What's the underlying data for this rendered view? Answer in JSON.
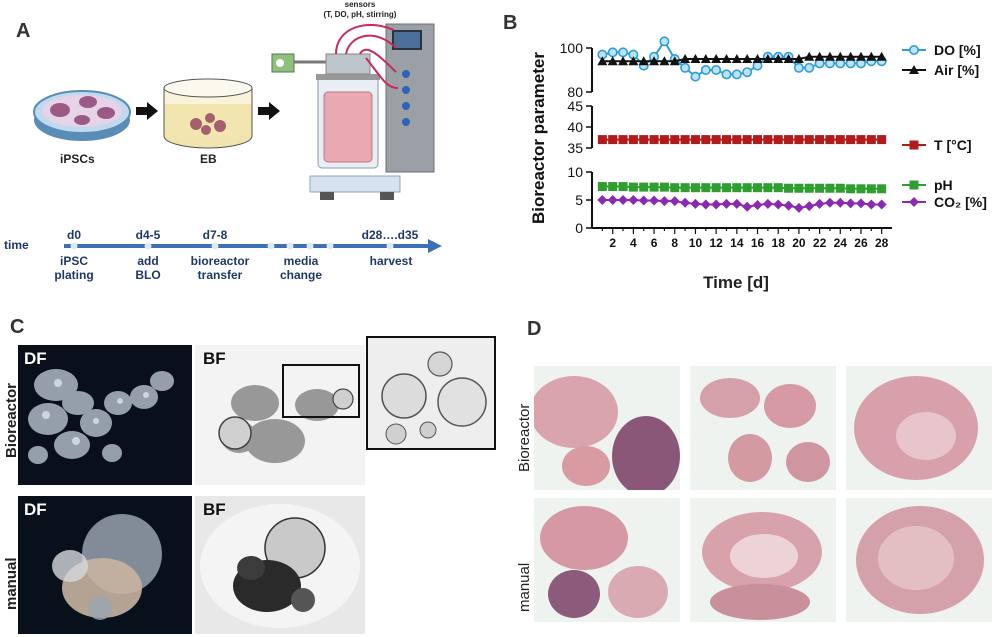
{
  "panels": {
    "a": "A",
    "b": "B",
    "c": "C",
    "d": "D"
  },
  "panel_a": {
    "sensors_label": "sensors",
    "sensors_detail": "(T, DO, pH, stirring)",
    "ipsc_label": "iPSCs",
    "eb_label": "EB",
    "timeline": {
      "time_label": "time",
      "days": [
        "d0",
        "d4-5",
        "d7-8",
        "d28….d35"
      ],
      "events": [
        {
          "line1": "iPSC",
          "line2": "plating"
        },
        {
          "line1": "add",
          "line2": "BLO"
        },
        {
          "line1": "bioreactor",
          "line2": "transfer"
        },
        {
          "line1": "media",
          "line2": "change"
        },
        {
          "line1": "",
          "line2": "harvest"
        }
      ]
    }
  },
  "panel_c": {
    "row_labels": [
      "Bioreactor",
      "manual"
    ],
    "df_label": "DF",
    "bf_label": "BF"
  },
  "panel_d": {
    "row_labels": [
      "Bioreactor",
      "manual"
    ]
  },
  "chart_data": {
    "type": "line",
    "ylabel": "Bioreactor parameter",
    "xlabel": "Time [d]",
    "x_ticks": [
      2,
      4,
      6,
      8,
      10,
      12,
      14,
      16,
      18,
      20,
      22,
      24,
      26,
      28
    ],
    "x": [
      1,
      2,
      3,
      4,
      5,
      6,
      7,
      8,
      9,
      10,
      11,
      12,
      13,
      14,
      15,
      16,
      17,
      18,
      19,
      20,
      21,
      22,
      23,
      24,
      25,
      26,
      27,
      28
    ],
    "xlim": [
      0,
      29
    ],
    "segments": [
      {
        "ylim": [
          80,
          100
        ],
        "ticks": [
          80,
          100
        ]
      },
      {
        "ylim": [
          35,
          45
        ],
        "ticks": [
          35,
          40,
          45
        ]
      },
      {
        "ylim": [
          0,
          10
        ],
        "ticks": [
          0,
          5,
          10
        ]
      }
    ],
    "series": [
      {
        "name": "DO [%]",
        "segment": 0,
        "color": "#2e9fd6",
        "marker": "circle",
        "values": [
          97,
          98,
          98,
          97,
          92,
          96,
          103,
          95,
          91,
          87,
          90,
          90,
          88,
          88,
          89,
          92,
          96,
          96,
          96,
          91,
          91,
          93,
          93,
          93,
          93,
          93,
          94,
          94
        ]
      },
      {
        "name": "Air [%]",
        "segment": 0,
        "color": "#111111",
        "marker": "triangle",
        "values": [
          94,
          94,
          94,
          94,
          94,
          94,
          94,
          94,
          95,
          95,
          95,
          95,
          95,
          95,
          95,
          95,
          95,
          95,
          95,
          95,
          96,
          96,
          96,
          96,
          96,
          96,
          96,
          96
        ]
      },
      {
        "name": "T [°C]",
        "segment": 1,
        "color": "#b01c1c",
        "marker": "square",
        "values": [
          37,
          37,
          37,
          37,
          37,
          37,
          37,
          37,
          37,
          37,
          37,
          37,
          37,
          37,
          37,
          37,
          37,
          37,
          37,
          37,
          37,
          37,
          37,
          37,
          37,
          37,
          37,
          37
        ]
      },
      {
        "name": "pH",
        "segment": 2,
        "color": "#2f9e2f",
        "marker": "square",
        "values": [
          7.4,
          7.4,
          7.4,
          7.3,
          7.3,
          7.3,
          7.3,
          7.2,
          7.2,
          7.2,
          7.2,
          7.2,
          7.2,
          7.2,
          7.2,
          7.2,
          7.2,
          7.2,
          7.1,
          7.1,
          7.1,
          7.1,
          7.1,
          7.1,
          7.0,
          7.0,
          7.0,
          7.0
        ]
      },
      {
        "name": "CO₂ [%]",
        "segment": 2,
        "color": "#8a2ab0",
        "marker": "diamond",
        "values": [
          5.0,
          5.0,
          5.0,
          5.0,
          4.9,
          4.9,
          4.8,
          4.8,
          4.5,
          4.3,
          4.2,
          4.2,
          4.3,
          4.3,
          3.8,
          4.1,
          4.3,
          4.2,
          4.0,
          3.6,
          3.9,
          4.3,
          4.5,
          4.5,
          4.4,
          4.4,
          4.2,
          4.2
        ]
      }
    ]
  }
}
